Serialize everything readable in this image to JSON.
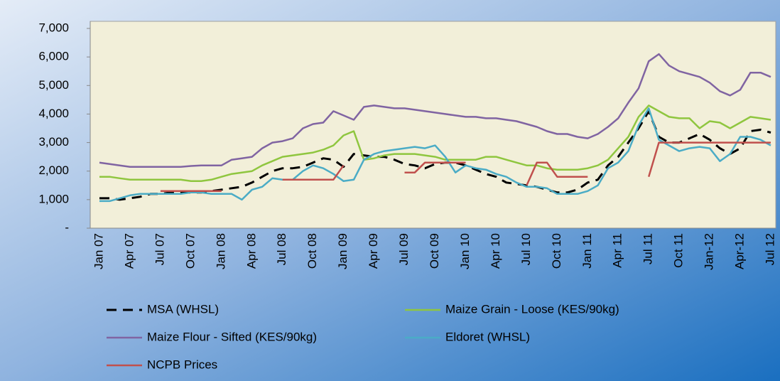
{
  "chart_data": {
    "type": "line",
    "categories": [
      "Jan 07",
      null,
      null,
      "Apr 07",
      null,
      null,
      "Jul 07",
      null,
      null,
      "Oct 07",
      null,
      null,
      "Jan 08",
      null,
      null,
      "Apr 08",
      null,
      null,
      "Jul 08",
      null,
      null,
      "Oct 08",
      null,
      null,
      "Jan 09",
      null,
      null,
      "Apr 09",
      null,
      null,
      "Jul 09",
      null,
      null,
      "Oct 09",
      null,
      null,
      "Jan 10",
      null,
      null,
      "Apr 10",
      null,
      null,
      "Jul 10",
      null,
      null,
      "Oct 10",
      null,
      null,
      "Jan 11",
      null,
      null,
      "Apr 11",
      null,
      null,
      "Jul 11",
      null,
      null,
      "Oct 11",
      null,
      null,
      "Jan-12",
      null,
      null,
      "Apr-12",
      null,
      null,
      "Jul 12"
    ],
    "ylim": [
      0,
      7000
    ],
    "yticks": [
      {
        "value": 0,
        "label": "-"
      },
      {
        "value": 1000,
        "label": "1,000"
      },
      {
        "value": 2000,
        "label": "2,000"
      },
      {
        "value": 3000,
        "label": "3,000"
      },
      {
        "value": 4000,
        "label": "4,000"
      },
      {
        "value": 5000,
        "label": "5,000"
      },
      {
        "value": 6000,
        "label": "6,000"
      },
      {
        "value": 7000,
        "label": "7,000"
      }
    ],
    "grid": false,
    "series": [
      {
        "name": "MSA (WHSL)",
        "color": "#000000",
        "dashed": true,
        "values": [
          1050,
          1050,
          1000,
          1050,
          1100,
          1200,
          1200,
          1250,
          1250,
          1250,
          1250,
          1300,
          1350,
          1400,
          1450,
          1600,
          1800,
          2000,
          2100,
          2100,
          2150,
          2300,
          2450,
          2400,
          2150,
          2600,
          2550,
          2500,
          2500,
          2400,
          2250,
          2200,
          2100,
          2250,
          2300,
          2300,
          2200,
          2050,
          1900,
          1800,
          1600,
          1550,
          1500,
          1450,
          1350,
          1250,
          1250,
          1350,
          1600,
          1700,
          2200,
          2500,
          3000,
          3500,
          4100,
          3200,
          3000,
          3000,
          3150,
          3300,
          3100,
          2800,
          2600,
          2800,
          3400,
          3450,
          3350
        ]
      },
      {
        "name": "Maize Grain - Loose (KES/90kg)",
        "color": "#8fc63f",
        "values": [
          1800,
          1800,
          1750,
          1700,
          1700,
          1700,
          1700,
          1700,
          1700,
          1650,
          1650,
          1700,
          1800,
          1900,
          1950,
          2000,
          2200,
          2350,
          2500,
          2550,
          2600,
          2650,
          2750,
          2900,
          3250,
          3400,
          2400,
          2450,
          2550,
          2600,
          2600,
          2600,
          2550,
          2500,
          2400,
          2400,
          2400,
          2400,
          2500,
          2500,
          2400,
          2300,
          2200,
          2200,
          2100,
          2050,
          2050,
          2050,
          2100,
          2200,
          2400,
          2800,
          3200,
          3900,
          4300,
          4100,
          3900,
          3850,
          3850,
          3500,
          3750,
          3700,
          3500,
          3700,
          3900,
          3850,
          3800
        ]
      },
      {
        "name": "Maize Flour - Sifted (KES/90kg)",
        "color": "#8064a2",
        "values": [
          2300,
          2250,
          2200,
          2150,
          2150,
          2150,
          2150,
          2150,
          2150,
          2180,
          2200,
          2200,
          2200,
          2400,
          2450,
          2500,
          2800,
          3000,
          3050,
          3150,
          3500,
          3650,
          3700,
          4100,
          3950,
          3800,
          4250,
          4300,
          4250,
          4200,
          4200,
          4150,
          4100,
          4050,
          4000,
          3950,
          3900,
          3900,
          3850,
          3850,
          3800,
          3750,
          3650,
          3550,
          3400,
          3300,
          3300,
          3200,
          3150,
          3300,
          3550,
          3850,
          4400,
          4900,
          5850,
          6100,
          5700,
          5500,
          5400,
          5300,
          5100,
          4800,
          4650,
          4850,
          5450,
          5450,
          5300
        ]
      },
      {
        "name": "Eldoret (WHSL)",
        "color": "#4bacc6",
        "values": [
          950,
          950,
          1050,
          1150,
          1200,
          1200,
          1200,
          1200,
          1200,
          1250,
          1250,
          1200,
          1200,
          1200,
          1000,
          1350,
          1450,
          1750,
          1700,
          1700,
          2000,
          2200,
          2100,
          1900,
          1650,
          1700,
          2400,
          2600,
          2700,
          2750,
          2800,
          2850,
          2800,
          2900,
          2500,
          1950,
          2200,
          2100,
          2050,
          1900,
          1800,
          1600,
          1450,
          1450,
          1400,
          1200,
          1200,
          1200,
          1300,
          1500,
          2100,
          2300,
          2700,
          3600,
          4200,
          3100,
          2900,
          2700,
          2800,
          2850,
          2800,
          2350,
          2600,
          3200,
          3200,
          3100,
          2900
        ]
      },
      {
        "name": "NCPB Prices",
        "color": "#c0504d",
        "values": [
          null,
          null,
          null,
          null,
          null,
          null,
          1300,
          1300,
          1300,
          1300,
          1300,
          1300,
          1300,
          null,
          null,
          null,
          null,
          null,
          1700,
          1700,
          1700,
          1700,
          1700,
          1700,
          2200,
          null,
          null,
          null,
          null,
          null,
          1950,
          1950,
          2300,
          2300,
          2300,
          2300,
          2300,
          null,
          null,
          null,
          null,
          null,
          1500,
          2300,
          2300,
          1800,
          1800,
          1800,
          1800,
          null,
          null,
          null,
          null,
          null,
          1800,
          3000,
          3000,
          3000,
          3000,
          3000,
          3000,
          3000,
          3000,
          3000,
          3000,
          3000,
          3000
        ]
      }
    ]
  }
}
